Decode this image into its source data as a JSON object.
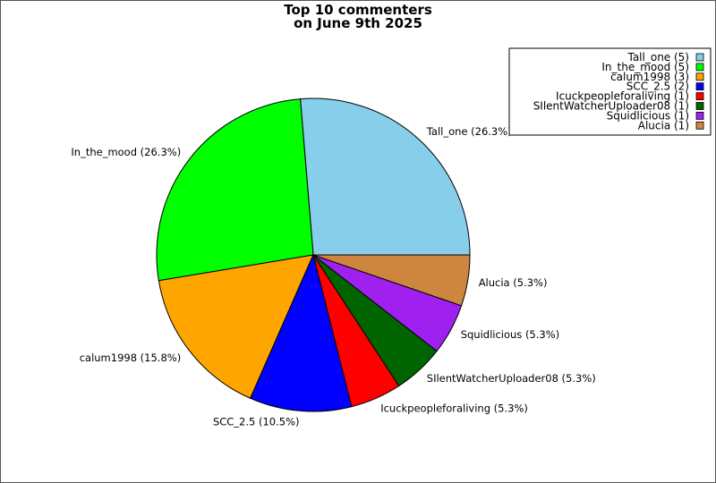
{
  "chart_data": {
    "type": "pie",
    "title_lines": [
      "Top 10 commenters",
      "on June 9th 2025"
    ],
    "slices": [
      {
        "name": "Tall_one",
        "value": 5,
        "percent_label": "Tall_one (26.3%)",
        "legend_label": "Tall_one (5)",
        "color": "#87ceeb"
      },
      {
        "name": "In_the_mood",
        "value": 5,
        "percent_label": "In_the_mood (26.3%)",
        "legend_label": "In_the_mood (5)",
        "color": "#00ff00"
      },
      {
        "name": "calum1998",
        "value": 3,
        "percent_label": "calum1998 (15.8%)",
        "legend_label": "calum1998 (3)",
        "color": "#ffa500"
      },
      {
        "name": "SCC_2.5",
        "value": 2,
        "percent_label": "SCC_2.5 (10.5%)",
        "legend_label": "SCC_2.5 (2)",
        "color": "#0000ff"
      },
      {
        "name": "Icuckpeopleforaliving",
        "value": 1,
        "percent_label": "Icuckpeopleforaliving (5.3%)",
        "legend_label": "Icuckpeopleforaliving (1)",
        "color": "#ff0000"
      },
      {
        "name": "SIlentWatcherUploader08",
        "value": 1,
        "percent_label": "SIlentWatcherUploader08 (5.3%)",
        "legend_label": "SIlentWatcherUploader08 (1)",
        "color": "#006400"
      },
      {
        "name": "Squidlicious",
        "value": 1,
        "percent_label": "Squidlicious (5.3%)",
        "legend_label": "Squidlicious (1)",
        "color": "#a020f0"
      },
      {
        "name": "Alucia",
        "value": 1,
        "percent_label": "Alucia (5.3%)",
        "legend_label": "Alucia (1)",
        "color": "#cd853f"
      }
    ],
    "start": "3 o'clock",
    "direction": "counter-clockwise",
    "legend_placement": "top-right"
  }
}
